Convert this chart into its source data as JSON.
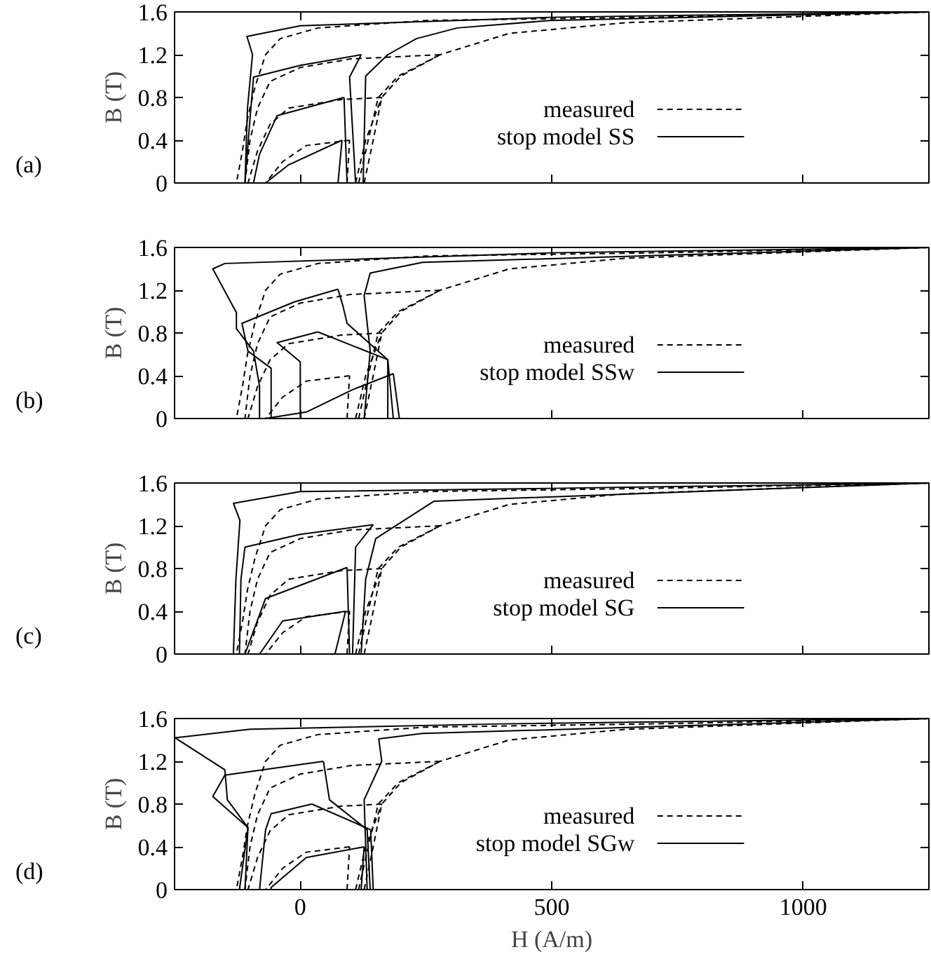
{
  "chart_data": [
    {
      "type": "line",
      "annotations": [
        "(a)"
      ],
      "ylabel": "B (T)",
      "xlim": [
        -250,
        1250
      ],
      "xticks": [
        0,
        500,
        1000
      ],
      "ylim": [
        0,
        1.6
      ],
      "yticks": [
        0,
        0.4,
        0.8,
        1.2,
        1.6
      ],
      "tick_labels": "y",
      "legend": "right",
      "series": [
        {
          "name": "measured",
          "color": "#000000",
          "line_style": "dashed",
          "x": [
            1250,
            700,
            250,
            35,
            -40,
            -69,
            -90,
            -105,
            -115,
            -127
          ],
          "values": [
            1.6,
            1.55,
            1.52,
            1.45,
            1.35,
            1.2,
            0.9,
            0.6,
            0.3,
            0
          ]
        },
        {
          "color": "#000000",
          "line_style": "dashed",
          "x": [
            127,
            145,
            162,
            200,
            278,
            416,
            650,
            1250
          ],
          "values": [
            0,
            0.4,
            0.8,
            1.0,
            1.2,
            1.4,
            1.5,
            1.6
          ]
        },
        {
          "color": "#000000",
          "line_style": "dashed",
          "x": [
            278,
            100,
            0,
            -60,
            -85,
            -100,
            -110
          ],
          "values": [
            1.2,
            1.16,
            1.08,
            0.95,
            0.7,
            0.4,
            0
          ]
        },
        {
          "color": "#000000",
          "line_style": "dashed",
          "x": [
            116,
            135,
            155,
            195,
            278
          ],
          "values": [
            0,
            0.4,
            0.8,
            1.0,
            1.2
          ]
        },
        {
          "color": "#000000",
          "line_style": "dashed",
          "x": [
            162,
            81,
            -23,
            -60,
            -85,
            -104
          ],
          "values": [
            0.8,
            0.78,
            0.7,
            0.55,
            0.3,
            0
          ]
        },
        {
          "color": "#000000",
          "line_style": "dashed",
          "x": [
            110,
            130,
            162
          ],
          "values": [
            0,
            0.4,
            0.8
          ]
        },
        {
          "color": "#000000",
          "line_style": "dashed",
          "x": [
            98,
            12,
            -35,
            -69
          ],
          "values": [
            0.4,
            0.35,
            0.2,
            0
          ]
        },
        {
          "color": "#000000",
          "line_style": "dashed",
          "x": [
            93,
            98
          ],
          "values": [
            0,
            0.4
          ]
        },
        {
          "name": "stop model SS",
          "color": "#000000",
          "line_style": "solid",
          "x": [
            1250,
            500,
            0,
            -106,
            -95,
            -105,
            -110
          ],
          "values": [
            1.6,
            1.55,
            1.47,
            1.37,
            1.2,
            0.7,
            0
          ]
        },
        {
          "color": "#000000",
          "line_style": "solid",
          "x": [
            125,
            130,
            174,
            231,
            312,
            497,
            1250
          ],
          "values": [
            0,
            1.0,
            1.2,
            1.35,
            1.45,
            1.52,
            1.6
          ]
        },
        {
          "color": "#000000",
          "line_style": "solid",
          "x": [
            121,
            0,
            -93,
            -100,
            -110
          ],
          "values": [
            1.2,
            1.1,
            0.99,
            0.6,
            0
          ]
        },
        {
          "color": "#000000",
          "line_style": "solid",
          "x": [
            110,
            98,
            121
          ],
          "values": [
            0,
            0.99,
            1.2
          ]
        },
        {
          "color": "#000000",
          "line_style": "solid",
          "x": [
            87,
            -46,
            -81,
            -93
          ],
          "values": [
            0.8,
            0.63,
            0.27,
            0
          ]
        },
        {
          "color": "#000000",
          "line_style": "solid",
          "x": [
            93,
            87
          ],
          "values": [
            0,
            0.8
          ]
        },
        {
          "color": "#000000",
          "line_style": "solid",
          "x": [
            83,
            -23,
            -69
          ],
          "values": [
            0.4,
            0.17,
            0
          ]
        },
        {
          "color": "#000000",
          "line_style": "solid",
          "x": [
            75,
            83
          ],
          "values": [
            0,
            0.4
          ]
        }
      ]
    },
    {
      "type": "line",
      "annotations": [
        "(b)"
      ],
      "ylabel": "B (T)",
      "xlim": [
        -250,
        1250
      ],
      "xticks": [
        0,
        500,
        1000
      ],
      "ylim": [
        0,
        1.6
      ],
      "yticks": [
        0,
        0.4,
        0.8,
        1.2,
        1.6
      ],
      "tick_labels": "y",
      "legend": "right",
      "series": [
        {
          "name": "measured",
          "color": "#000000",
          "line_style": "dashed",
          "x": [
            1250,
            700,
            250,
            35,
            -40,
            -69,
            -90,
            -105,
            -115,
            -127
          ],
          "values": [
            1.6,
            1.55,
            1.52,
            1.45,
            1.35,
            1.2,
            0.9,
            0.6,
            0.3,
            0
          ]
        },
        {
          "color": "#000000",
          "line_style": "dashed",
          "x": [
            127,
            145,
            162,
            200,
            278,
            416,
            650,
            1250
          ],
          "values": [
            0,
            0.4,
            0.8,
            1.0,
            1.2,
            1.4,
            1.5,
            1.6
          ]
        },
        {
          "color": "#000000",
          "line_style": "dashed",
          "x": [
            278,
            100,
            0,
            -60,
            -85,
            -100,
            -110
          ],
          "values": [
            1.2,
            1.16,
            1.08,
            0.95,
            0.7,
            0.4,
            0
          ]
        },
        {
          "color": "#000000",
          "line_style": "dashed",
          "x": [
            116,
            135,
            155,
            195,
            278
          ],
          "values": [
            0,
            0.4,
            0.8,
            1.0,
            1.2
          ]
        },
        {
          "color": "#000000",
          "line_style": "dashed",
          "x": [
            162,
            81,
            -23,
            -60,
            -85,
            -104
          ],
          "values": [
            0.8,
            0.78,
            0.7,
            0.55,
            0.3,
            0
          ]
        },
        {
          "color": "#000000",
          "line_style": "dashed",
          "x": [
            110,
            130,
            162
          ],
          "values": [
            0,
            0.4,
            0.8
          ]
        },
        {
          "color": "#000000",
          "line_style": "dashed",
          "x": [
            98,
            12,
            -35,
            -69
          ],
          "values": [
            0.4,
            0.35,
            0.2,
            0
          ]
        },
        {
          "color": "#000000",
          "line_style": "dashed",
          "x": [
            93,
            98
          ],
          "values": [
            0,
            0.4
          ]
        },
        {
          "name": "stop model SSw",
          "color": "#000000",
          "line_style": "solid",
          "x": [
            1250,
            500,
            -150,
            -174,
            -127,
            -127,
            -93,
            -81,
            -81
          ],
          "values": [
            1.6,
            1.55,
            1.45,
            1.4,
            0.99,
            0.84,
            0.63,
            0.3,
            0
          ]
        },
        {
          "color": "#000000",
          "line_style": "solid",
          "x": [
            127,
            139,
            127,
            139,
            243,
            1250
          ],
          "values": [
            0,
            0.63,
            1.15,
            1.36,
            1.46,
            1.6
          ]
        },
        {
          "color": "#000000",
          "line_style": "solid",
          "x": [
            75,
            -12,
            -116,
            -104,
            -58,
            -58
          ],
          "values": [
            1.21,
            1.09,
            0.89,
            0.63,
            0.47,
            0
          ]
        },
        {
          "color": "#000000",
          "line_style": "solid",
          "x": [
            174,
            174,
            93,
            85,
            75
          ],
          "values": [
            0,
            0.55,
            0.89,
            1.05,
            1.21
          ]
        },
        {
          "color": "#000000",
          "line_style": "solid",
          "x": [
            35,
            -46,
            0,
            0
          ],
          "values": [
            0.81,
            0.71,
            0.53,
            0
          ]
        },
        {
          "color": "#000000",
          "line_style": "solid",
          "x": [
            185,
            174,
            35
          ],
          "values": [
            0,
            0.55,
            0.81
          ]
        },
        {
          "color": "#000000",
          "line_style": "solid",
          "x": [
            185,
            104,
            12,
            -69
          ],
          "values": [
            0.42,
            0.27,
            0.06,
            0
          ]
        },
        {
          "color": "#000000",
          "line_style": "solid",
          "x": [
            197,
            185
          ],
          "values": [
            0,
            0.42
          ]
        }
      ]
    },
    {
      "type": "line",
      "annotations": [
        "(c)"
      ],
      "ylabel": "B (T)",
      "xlim": [
        -250,
        1250
      ],
      "xticks": [
        0,
        500,
        1000
      ],
      "ylim": [
        0,
        1.6
      ],
      "yticks": [
        0,
        0.4,
        0.8,
        1.2,
        1.6
      ],
      "tick_labels": "y",
      "legend": "right",
      "series": [
        {
          "name": "measured",
          "color": "#000000",
          "line_style": "dashed",
          "x": [
            1250,
            700,
            250,
            35,
            -40,
            -69,
            -90,
            -105,
            -115,
            -127
          ],
          "values": [
            1.6,
            1.55,
            1.52,
            1.45,
            1.35,
            1.2,
            0.9,
            0.6,
            0.3,
            0
          ]
        },
        {
          "color": "#000000",
          "line_style": "dashed",
          "x": [
            127,
            145,
            162,
            200,
            278,
            416,
            650,
            1250
          ],
          "values": [
            0,
            0.4,
            0.8,
            1.0,
            1.2,
            1.4,
            1.5,
            1.6
          ]
        },
        {
          "color": "#000000",
          "line_style": "dashed",
          "x": [
            278,
            100,
            0,
            -60,
            -85,
            -100,
            -110
          ],
          "values": [
            1.2,
            1.16,
            1.08,
            0.95,
            0.7,
            0.4,
            0
          ]
        },
        {
          "color": "#000000",
          "line_style": "dashed",
          "x": [
            116,
            135,
            155,
            195,
            278
          ],
          "values": [
            0,
            0.4,
            0.8,
            1.0,
            1.2
          ]
        },
        {
          "color": "#000000",
          "line_style": "dashed",
          "x": [
            162,
            81,
            -23,
            -60,
            -85,
            -104
          ],
          "values": [
            0.8,
            0.78,
            0.7,
            0.55,
            0.3,
            0
          ]
        },
        {
          "color": "#000000",
          "line_style": "dashed",
          "x": [
            110,
            130,
            162
          ],
          "values": [
            0,
            0.4,
            0.8
          ]
        },
        {
          "color": "#000000",
          "line_style": "dashed",
          "x": [
            98,
            12,
            -35,
            -69
          ],
          "values": [
            0.4,
            0.35,
            0.2,
            0
          ]
        },
        {
          "color": "#000000",
          "line_style": "dashed",
          "x": [
            93,
            98
          ],
          "values": [
            0,
            0.4
          ]
        },
        {
          "name": "stop model SG",
          "color": "#000000",
          "line_style": "solid",
          "x": [
            1250,
            500,
            0,
            -133,
            -120,
            -128,
            -133
          ],
          "values": [
            1.6,
            1.55,
            1.52,
            1.41,
            1.25,
            0.7,
            0
          ]
        },
        {
          "color": "#000000",
          "line_style": "solid",
          "x": [
            121,
            130,
            150,
            266,
            1250
          ],
          "values": [
            0,
            0.7,
            1.08,
            1.43,
            1.6
          ]
        },
        {
          "color": "#000000",
          "line_style": "solid",
          "x": [
            145,
            0,
            -110,
            -118,
            -121
          ],
          "values": [
            1.21,
            1.12,
            1.0,
            0.7,
            0
          ]
        },
        {
          "color": "#000000",
          "line_style": "solid",
          "x": [
            104,
            110,
            145
          ],
          "values": [
            0,
            1.0,
            1.21
          ]
        },
        {
          "color": "#000000",
          "line_style": "solid",
          "x": [
            93,
            -69,
            -110
          ],
          "values": [
            0.81,
            0.52,
            0
          ]
        },
        {
          "color": "#000000",
          "line_style": "solid",
          "x": [
            98,
            93
          ],
          "values": [
            0,
            0.81
          ]
        },
        {
          "color": "#000000",
          "line_style": "solid",
          "x": [
            90,
            -35,
            -81
          ],
          "values": [
            0.4,
            0.31,
            0
          ]
        },
        {
          "color": "#000000",
          "line_style": "solid",
          "x": [
            69,
            90
          ],
          "values": [
            0,
            0.4
          ]
        }
      ]
    },
    {
      "type": "line",
      "annotations": [
        "(d)"
      ],
      "xlabel": "H (A/m)",
      "ylabel": "B (T)",
      "xlim": [
        -250,
        1250
      ],
      "xticks": [
        0,
        500,
        1000
      ],
      "ylim": [
        0,
        1.6
      ],
      "yticks": [
        0,
        0.4,
        0.8,
        1.2,
        1.6
      ],
      "legend": "right",
      "series": [
        {
          "name": "measured",
          "color": "#000000",
          "line_style": "dashed",
          "x": [
            1250,
            700,
            250,
            35,
            -40,
            -69,
            -90,
            -105,
            -115,
            -127
          ],
          "values": [
            1.6,
            1.55,
            1.52,
            1.45,
            1.35,
            1.2,
            0.9,
            0.6,
            0.3,
            0
          ]
        },
        {
          "color": "#000000",
          "line_style": "dashed",
          "x": [
            127,
            145,
            162,
            200,
            278,
            416,
            650,
            1250
          ],
          "values": [
            0,
            0.4,
            0.8,
            1.0,
            1.2,
            1.4,
            1.5,
            1.6
          ]
        },
        {
          "color": "#000000",
          "line_style": "dashed",
          "x": [
            278,
            100,
            0,
            -60,
            -85,
            -100,
            -110
          ],
          "values": [
            1.2,
            1.16,
            1.08,
            0.95,
            0.7,
            0.4,
            0
          ]
        },
        {
          "color": "#000000",
          "line_style": "dashed",
          "x": [
            116,
            135,
            155,
            195,
            278
          ],
          "values": [
            0,
            0.4,
            0.8,
            1.0,
            1.2
          ]
        },
        {
          "color": "#000000",
          "line_style": "dashed",
          "x": [
            162,
            81,
            -23,
            -60,
            -85,
            -104
          ],
          "values": [
            0.8,
            0.78,
            0.7,
            0.55,
            0.3,
            0
          ]
        },
        {
          "color": "#000000",
          "line_style": "dashed",
          "x": [
            110,
            130,
            162
          ],
          "values": [
            0,
            0.4,
            0.8
          ]
        },
        {
          "color": "#000000",
          "line_style": "dashed",
          "x": [
            98,
            12,
            -35,
            -69
          ],
          "values": [
            0.4,
            0.35,
            0.2,
            0
          ]
        },
        {
          "color": "#000000",
          "line_style": "dashed",
          "x": [
            93,
            98
          ],
          "values": [
            0,
            0.4
          ]
        },
        {
          "name": "stop model SGw",
          "color": "#000000",
          "line_style": "solid",
          "x": [
            1250,
            400,
            -100,
            -249,
            -150,
            -145,
            -104,
            -121
          ],
          "values": [
            1.6,
            1.55,
            1.5,
            1.42,
            1.12,
            0.84,
            0.58,
            0
          ]
        },
        {
          "color": "#000000",
          "line_style": "solid",
          "x": [
            133,
            127,
            162,
            156,
            243,
            1250
          ],
          "values": [
            0,
            0.84,
            1.2,
            1.41,
            1.46,
            1.6
          ]
        },
        {
          "color": "#000000",
          "line_style": "solid",
          "x": [
            46,
            -150,
            -174,
            -104,
            -110
          ],
          "values": [
            1.2,
            1.07,
            0.87,
            0.58,
            0
          ]
        },
        {
          "color": "#000000",
          "line_style": "solid",
          "x": [
            139,
            133,
            58,
            46
          ],
          "values": [
            0,
            0.56,
            0.84,
            1.2
          ]
        },
        {
          "color": "#000000",
          "line_style": "solid",
          "x": [
            23,
            -58,
            -69,
            -81
          ],
          "values": [
            0.8,
            0.71,
            0.56,
            0
          ]
        },
        {
          "color": "#000000",
          "line_style": "solid",
          "x": [
            145,
            140,
            23
          ],
          "values": [
            0,
            0.56,
            0.8
          ]
        },
        {
          "color": "#000000",
          "line_style": "solid",
          "x": [
            127,
            12,
            -58,
            -58
          ],
          "values": [
            0.4,
            0.3,
            0.02,
            0
          ]
        },
        {
          "color": "#000000",
          "line_style": "solid",
          "x": [
            121,
            127
          ],
          "values": [
            0,
            0.4
          ]
        }
      ]
    }
  ]
}
